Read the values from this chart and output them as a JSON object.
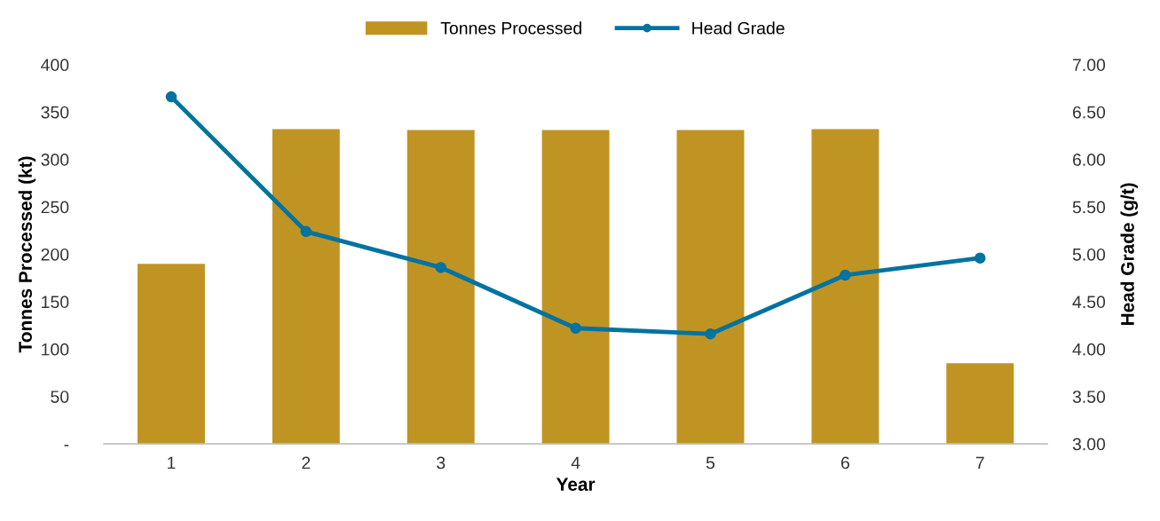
{
  "chart_data": {
    "type": "bar",
    "xlabel": "Year",
    "ylabel": "Tonnes Processed (kt)",
    "y2label": "Head Grade (g/t)",
    "categories": [
      "1",
      "2",
      "3",
      "4",
      "5",
      "6",
      "7"
    ],
    "series": [
      {
        "name": "Tonnes Processed",
        "color": "#c09423",
        "values": [
          190,
          332,
          331,
          331,
          331,
          332,
          85
        ]
      },
      {
        "name": "Head Grade",
        "type": "line",
        "axis": "y2",
        "color": "#0073a0",
        "marker": "circle",
        "line_style": "solid",
        "values": [
          6.66,
          5.24,
          4.86,
          4.22,
          4.16,
          4.78,
          4.96
        ]
      }
    ],
    "ylim": [
      0,
      400
    ],
    "yticks": [
      {
        "value": 0,
        "label": "-"
      },
      50,
      100,
      150,
      200,
      250,
      300,
      350,
      400
    ],
    "y2lim": [
      3,
      7
    ],
    "y2ticks": [
      {
        "value": 3,
        "label": "3.00"
      },
      {
        "value": 3.5,
        "label": "3.50"
      },
      {
        "value": 4,
        "label": "4.00"
      },
      {
        "value": 4.5,
        "label": "4.50"
      },
      {
        "value": 5,
        "label": "5.00"
      },
      {
        "value": 5.5,
        "label": "5.50"
      },
      {
        "value": 6,
        "label": "6.00"
      },
      {
        "value": 6.5,
        "label": "6.50"
      },
      {
        "value": 7,
        "label": "7.00"
      }
    ],
    "grid": false,
    "legend": "top"
  }
}
